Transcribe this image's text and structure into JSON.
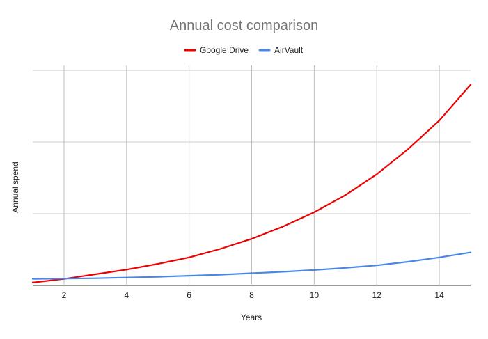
{
  "chart_data": {
    "type": "line",
    "title": "Annual cost comparison",
    "xlabel": "Years",
    "ylabel": "Annual spend",
    "x": [
      1,
      2,
      3,
      4,
      5,
      6,
      7,
      8,
      9,
      10,
      11,
      12,
      13,
      14,
      15
    ],
    "xlim": [
      1,
      15
    ],
    "xticks": [
      2,
      4,
      6,
      8,
      10,
      12,
      14
    ],
    "ylim": [
      0,
      3
    ],
    "ygrid_lines": [
      0,
      1,
      2,
      3
    ],
    "y_tick_labels_shown": false,
    "grid": true,
    "legend_position": "top",
    "series": [
      {
        "name": "Google Drive",
        "color": "#ee0000",
        "values": [
          0.04,
          0.09,
          0.155,
          0.22,
          0.3,
          0.39,
          0.51,
          0.65,
          0.82,
          1.02,
          1.26,
          1.55,
          1.9,
          2.3,
          2.8
        ]
      },
      {
        "name": "AirVault",
        "color": "#4a86e8",
        "values": [
          0.09,
          0.095,
          0.1,
          0.11,
          0.12,
          0.135,
          0.15,
          0.17,
          0.19,
          0.215,
          0.245,
          0.28,
          0.33,
          0.39,
          0.46
        ]
      }
    ]
  }
}
